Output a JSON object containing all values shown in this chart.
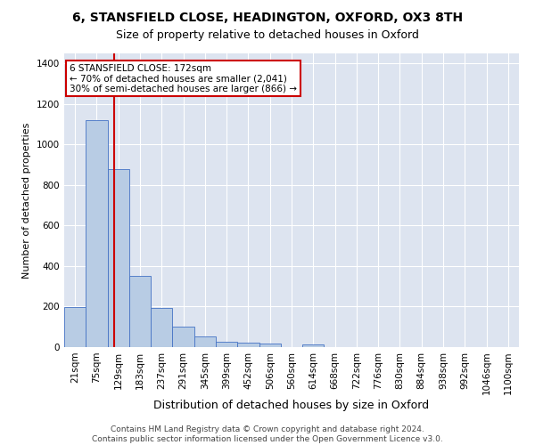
{
  "title1": "6, STANSFIELD CLOSE, HEADINGTON, OXFORD, OX3 8TH",
  "title2": "Size of property relative to detached houses in Oxford",
  "xlabel": "Distribution of detached houses by size in Oxford",
  "ylabel": "Number of detached properties",
  "categories": [
    "21sqm",
    "75sqm",
    "129sqm",
    "183sqm",
    "237sqm",
    "291sqm",
    "345sqm",
    "399sqm",
    "452sqm",
    "506sqm",
    "560sqm",
    "614sqm",
    "668sqm",
    "722sqm",
    "776sqm",
    "830sqm",
    "884sqm",
    "938sqm",
    "992sqm",
    "1046sqm",
    "1100sqm"
  ],
  "values": [
    197,
    1120,
    880,
    350,
    192,
    100,
    52,
    25,
    20,
    18,
    0,
    15,
    0,
    0,
    0,
    0,
    0,
    0,
    0,
    0,
    0
  ],
  "bar_color": "#b8cce4",
  "bar_edge_color": "#4472c4",
  "vline_x": 1.82,
  "vline_color": "#cc0000",
  "annotation_text": "6 STANSFIELD CLOSE: 172sqm\n← 70% of detached houses are smaller (2,041)\n30% of semi-detached houses are larger (866) →",
  "annotation_box_color": "#ffffff",
  "annotation_box_edge": "#cc0000",
  "ylim": [
    0,
    1450
  ],
  "yticks": [
    0,
    200,
    400,
    600,
    800,
    1000,
    1200,
    1400
  ],
  "bg_color": "#dde4f0",
  "footer": "Contains HM Land Registry data © Crown copyright and database right 2024.\nContains public sector information licensed under the Open Government Licence v3.0.",
  "title1_fontsize": 10,
  "title2_fontsize": 9,
  "xlabel_fontsize": 9,
  "ylabel_fontsize": 8,
  "tick_fontsize": 7.5,
  "annotation_fontsize": 7.5,
  "footer_fontsize": 6.5
}
